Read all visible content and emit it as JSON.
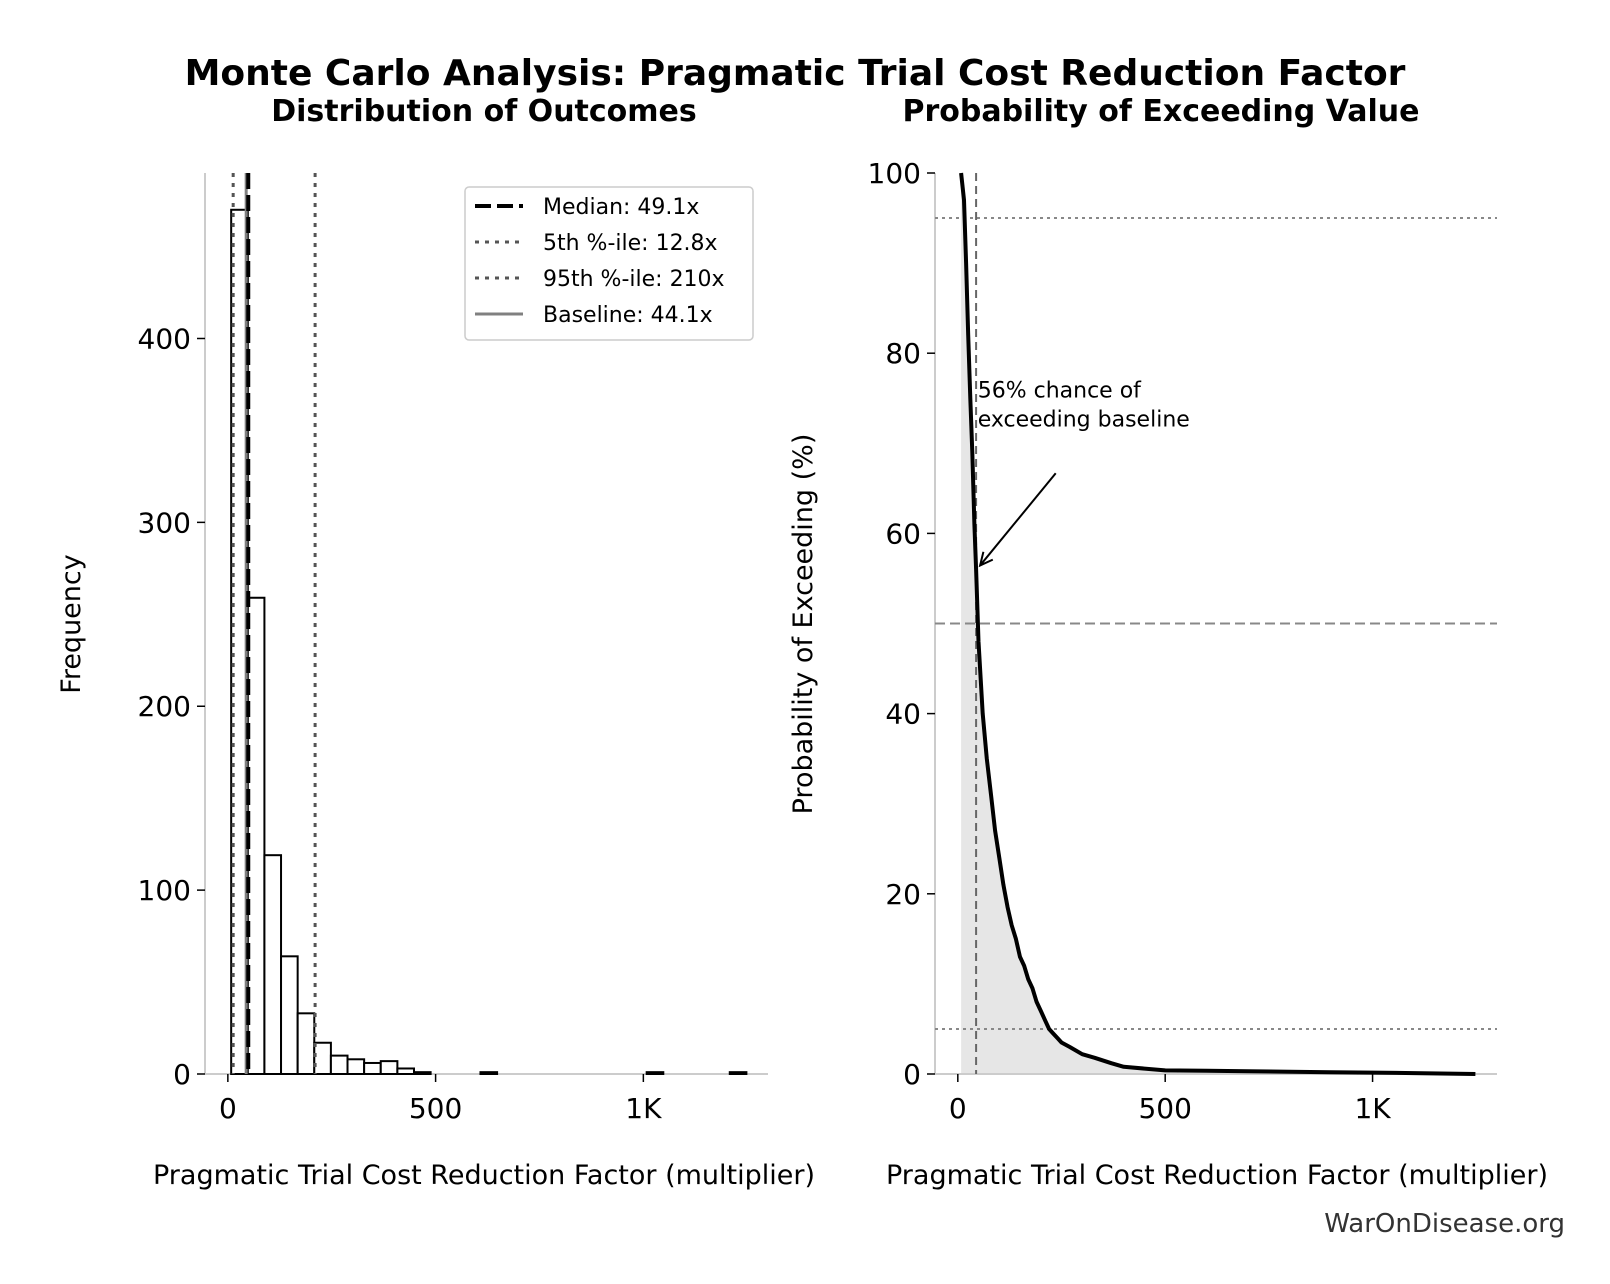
{
  "suptitle": "Monte Carlo Analysis: Pragmatic Trial Cost Reduction Factor",
  "watermark": "WarOnDisease.org",
  "colors": {
    "median": "#000000",
    "percentile": "#555555",
    "baseline": "#808080",
    "fill": "#e6e6e6",
    "reference": "#888888"
  },
  "chart_data": [
    {
      "type": "bar",
      "title": "Distribution of Outcomes",
      "xlabel": "Pragmatic Trial Cost Reduction Factor (multiplier)",
      "ylabel": "Frequency",
      "xlim": [
        -55,
        1300
      ],
      "ylim": [
        0,
        490
      ],
      "xticks": [
        0,
        500,
        1000
      ],
      "xtick_labels": [
        "0",
        "500",
        "1K"
      ],
      "yticks": [
        0,
        100,
        200,
        300,
        400
      ],
      "ytick_labels": [
        "0",
        "100",
        "200",
        "300",
        "400"
      ],
      "bin_edges": [
        8,
        48,
        88,
        128,
        168,
        208,
        248,
        288,
        328,
        368,
        408,
        448,
        488,
        528,
        568,
        608,
        648,
        688,
        728,
        768,
        808,
        848,
        888,
        928,
        968,
        1008,
        1048,
        1088,
        1128,
        1168,
        1208,
        1248
      ],
      "values": [
        470,
        259,
        119,
        64,
        33,
        17,
        10,
        8,
        6,
        7,
        3,
        1,
        0,
        0,
        0,
        1,
        0,
        0,
        0,
        0,
        0,
        0,
        0,
        0,
        0,
        1,
        0,
        0,
        0,
        0,
        1
      ],
      "vlines": [
        {
          "label": "Median: 49.1x",
          "x": 49.1,
          "style": "dashed",
          "color": "#000000"
        },
        {
          "label": "5th %-ile: 12.8x",
          "x": 12.8,
          "style": "dotted",
          "color": "#555555"
        },
        {
          "label": "95th %-ile: 210x",
          "x": 210,
          "style": "dotted",
          "color": "#555555"
        },
        {
          "label": "Baseline: 44.1x",
          "x": 44.1,
          "style": "solid",
          "color": "#808080"
        }
      ],
      "legend_position": "upper right",
      "grid": false
    },
    {
      "type": "area",
      "title": "Probability of Exceeding Value",
      "xlabel": "Pragmatic Trial Cost Reduction Factor (multiplier)",
      "ylabel": "Probability of Exceeding (%)",
      "xlim": [
        -55,
        1300
      ],
      "ylim": [
        0,
        100
      ],
      "xticks": [
        0,
        500,
        1000
      ],
      "xtick_labels": [
        "0",
        "500",
        "1K"
      ],
      "yticks": [
        0,
        20,
        40,
        60,
        80,
        100
      ],
      "ytick_labels": [
        "0",
        "20",
        "40",
        "60",
        "80",
        "100"
      ],
      "x": [
        8,
        15,
        20,
        25,
        30,
        35,
        40,
        44.1,
        50,
        60,
        70,
        80,
        90,
        100,
        110,
        120,
        130,
        140,
        150,
        160,
        170,
        180,
        190,
        200,
        210,
        220,
        230,
        240,
        250,
        270,
        300,
        330,
        370,
        400,
        450,
        500,
        600,
        700,
        800,
        900,
        1000,
        1100,
        1248
      ],
      "y": [
        100,
        97,
        90,
        82,
        75,
        69,
        61,
        56,
        48,
        40,
        35,
        31,
        27,
        24,
        21,
        18.5,
        16.5,
        15,
        13,
        12,
        10.5,
        9.5,
        8,
        7,
        6,
        5,
        4.5,
        4,
        3.5,
        3,
        2.2,
        1.8,
        1.2,
        0.8,
        0.6,
        0.4,
        0.35,
        0.3,
        0.25,
        0.2,
        0.15,
        0.1,
        0
      ],
      "hlines": [
        {
          "y": 95,
          "style": "dotted"
        },
        {
          "y": 50,
          "style": "dashed"
        },
        {
          "y": 5,
          "style": "dotted"
        }
      ],
      "baseline_x": 44.1,
      "annotation": {
        "lines": [
          "56% chance of",
          "exceeding baseline"
        ],
        "point_x": 44.1,
        "point_y": 56,
        "text_x": 48,
        "text_y": 70
      },
      "grid": false
    }
  ]
}
